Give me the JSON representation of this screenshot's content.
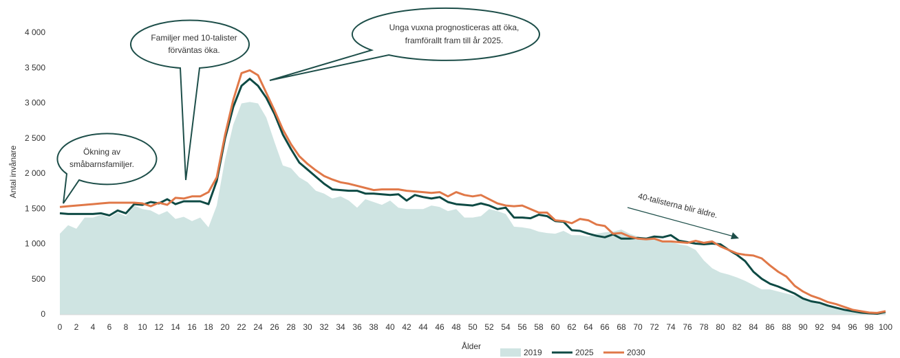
{
  "chart_data": {
    "type": "line",
    "y_label": "Antal invånare",
    "x_label": "Ålder",
    "x": [
      0,
      1,
      2,
      3,
      4,
      5,
      6,
      7,
      8,
      9,
      10,
      11,
      12,
      13,
      14,
      15,
      16,
      17,
      18,
      19,
      20,
      21,
      22,
      23,
      24,
      25,
      26,
      27,
      28,
      29,
      30,
      31,
      32,
      33,
      34,
      35,
      36,
      37,
      38,
      39,
      40,
      41,
      42,
      43,
      44,
      45,
      46,
      47,
      48,
      49,
      50,
      51,
      52,
      53,
      54,
      55,
      56,
      57,
      58,
      59,
      60,
      61,
      62,
      63,
      64,
      65,
      66,
      67,
      68,
      69,
      70,
      71,
      72,
      73,
      74,
      75,
      76,
      77,
      78,
      79,
      80,
      81,
      82,
      83,
      84,
      85,
      86,
      87,
      88,
      89,
      90,
      91,
      92,
      93,
      94,
      95,
      96,
      97,
      98,
      99,
      100
    ],
    "xlim": [
      0,
      100
    ],
    "xticks": [
      0,
      2,
      4,
      6,
      8,
      10,
      12,
      14,
      16,
      18,
      20,
      22,
      24,
      26,
      28,
      30,
      32,
      34,
      36,
      38,
      40,
      42,
      44,
      46,
      48,
      50,
      52,
      54,
      56,
      58,
      60,
      62,
      64,
      66,
      68,
      70,
      72,
      74,
      76,
      78,
      80,
      82,
      84,
      86,
      88,
      90,
      92,
      94,
      96,
      98,
      100
    ],
    "ylim": [
      0,
      4000
    ],
    "yticks": [
      0,
      500,
      {
        "value": 1000,
        "label": "1 000"
      },
      {
        "value": 1500,
        "label": "1 500"
      },
      {
        "value": 2000,
        "label": "2 000"
      },
      {
        "value": 2500,
        "label": "2 500"
      },
      {
        "value": 3000,
        "label": "3 000"
      },
      {
        "value": 3500,
        "label": "3 500"
      },
      {
        "value": 4000,
        "label": "4 000"
      }
    ],
    "grid": false,
    "series": [
      {
        "name": "2019",
        "type": "area",
        "color": "#cfe4e2",
        "values": [
          1150,
          1270,
          1220,
          1380,
          1380,
          1420,
          1380,
          1450,
          1400,
          1550,
          1500,
          1480,
          1420,
          1470,
          1360,
          1390,
          1330,
          1380,
          1240,
          1550,
          2200,
          2700,
          3000,
          3020,
          3000,
          2800,
          2450,
          2120,
          2080,
          1950,
          1880,
          1760,
          1720,
          1650,
          1680,
          1620,
          1520,
          1640,
          1600,
          1560,
          1620,
          1520,
          1500,
          1500,
          1500,
          1550,
          1530,
          1470,
          1500,
          1380,
          1380,
          1400,
          1500,
          1470,
          1430,
          1250,
          1240,
          1220,
          1180,
          1160,
          1150,
          1190,
          1130,
          1130,
          1110,
          1150,
          1170,
          1180,
          1210,
          1150,
          1110,
          1080,
          1080,
          1050,
          1030,
          1000,
          980,
          920,
          770,
          660,
          600,
          570,
          530,
          480,
          420,
          360,
          360,
          330,
          300,
          270,
          220,
          180,
          150,
          120,
          90,
          70,
          50,
          35,
          25,
          20,
          30
        ]
      },
      {
        "name": "2025",
        "type": "line",
        "color": "#0e4a44",
        "values": [
          1440,
          1430,
          1430,
          1430,
          1430,
          1440,
          1410,
          1480,
          1440,
          1570,
          1560,
          1600,
          1580,
          1640,
          1570,
          1610,
          1610,
          1610,
          1570,
          1900,
          2500,
          2950,
          3250,
          3350,
          3250,
          3080,
          2850,
          2560,
          2350,
          2160,
          2060,
          1960,
          1860,
          1780,
          1770,
          1760,
          1760,
          1720,
          1720,
          1710,
          1700,
          1710,
          1620,
          1700,
          1670,
          1650,
          1670,
          1600,
          1570,
          1560,
          1550,
          1580,
          1550,
          1500,
          1520,
          1380,
          1380,
          1370,
          1420,
          1400,
          1330,
          1320,
          1200,
          1190,
          1150,
          1120,
          1100,
          1140,
          1080,
          1080,
          1090,
          1080,
          1110,
          1100,
          1130,
          1050,
          1030,
          1010,
          1000,
          1010,
          1000,
          920,
          850,
          760,
          610,
          510,
          440,
          400,
          350,
          300,
          230,
          190,
          170,
          130,
          100,
          70,
          50,
          30,
          20,
          15,
          40
        ]
      },
      {
        "name": "2030",
        "type": "line",
        "color": "#e07848",
        "values": [
          1530,
          1540,
          1550,
          1560,
          1570,
          1580,
          1590,
          1590,
          1590,
          1590,
          1580,
          1540,
          1590,
          1560,
          1660,
          1650,
          1680,
          1680,
          1740,
          1950,
          2550,
          3050,
          3430,
          3470,
          3400,
          3150,
          2900,
          2630,
          2420,
          2250,
          2140,
          2050,
          1970,
          1920,
          1880,
          1860,
          1830,
          1800,
          1770,
          1780,
          1780,
          1780,
          1760,
          1750,
          1740,
          1730,
          1740,
          1680,
          1740,
          1700,
          1680,
          1700,
          1640,
          1580,
          1550,
          1540,
          1550,
          1500,
          1450,
          1450,
          1340,
          1330,
          1300,
          1360,
          1340,
          1280,
          1260,
          1150,
          1160,
          1110,
          1080,
          1070,
          1080,
          1040,
          1040,
          1030,
          1020,
          1050,
          1020,
          1040,
          970,
          920,
          870,
          850,
          840,
          800,
          700,
          610,
          540,
          410,
          330,
          270,
          230,
          180,
          150,
          110,
          70,
          50,
          30,
          25,
          50
        ]
      }
    ],
    "annotations": [
      {
        "lines": [
          "Ökning av",
          "småbarnsfamiljer."
        ]
      },
      {
        "lines": [
          "Familjer med 10-talister",
          "förväntas öka."
        ]
      },
      {
        "lines": [
          "Unga vuxna prognosticeras att öka,",
          "framförallt fram till år 2025."
        ]
      },
      {
        "lines": [
          "40-talisterna blir äldre."
        ]
      }
    ]
  }
}
